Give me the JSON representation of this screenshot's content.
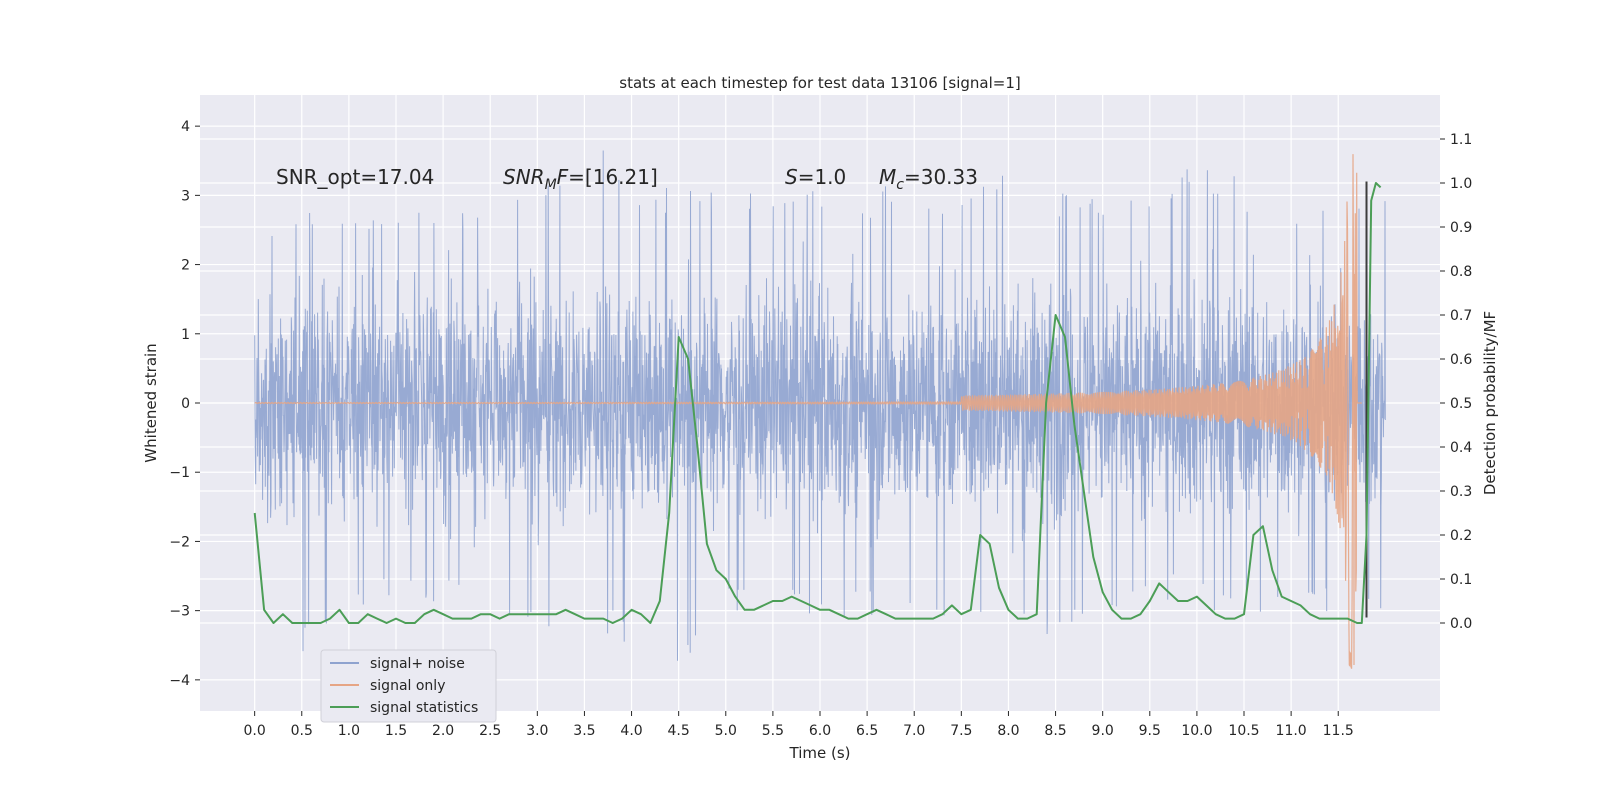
{
  "chart_data": {
    "type": "line",
    "title": "stats at each timestep for test data 13106 [signal=1]",
    "xlabel": "Time (s)",
    "ylabel": "Whitened strain",
    "ylabel_right": "Detection probability/MF",
    "xlim": [
      -0.58,
      12.58
    ],
    "ylim": [
      -4.45,
      4.45
    ],
    "ylim_right": [
      -0.2,
      1.2
    ],
    "x_ticks": [
      "0.0",
      "0.5",
      "1.0",
      "1.5",
      "2.0",
      "2.5",
      "3.0",
      "3.5",
      "4.0",
      "4.5",
      "5.0",
      "5.5",
      "6.0",
      "6.5",
      "7.0",
      "7.5",
      "8.0",
      "8.5",
      "9.0",
      "9.5",
      "10.0",
      "10.5",
      "11.0",
      "11.5"
    ],
    "y_ticks": [
      "4",
      "3",
      "2",
      "1",
      "0",
      "−1",
      "−2",
      "−3",
      "−4"
    ],
    "y_ticks_right": [
      "1.1",
      "1.0",
      "0.9",
      "0.8",
      "0.7",
      "0.6",
      "0.5",
      "0.4",
      "0.3",
      "0.2",
      "0.1",
      "0.0"
    ],
    "grid": true,
    "legend_position": "lower-left",
    "annotations": {
      "snr_opt": "SNR_opt=17.04",
      "snr_mf_name": "SNR",
      "snr_mf_sub": "M",
      "snr_mf_value": "F=[16.21]",
      "s_name": "S",
      "s_value": "=1.0",
      "mc_name": "M",
      "mc_sub": "c",
      "mc_value": "=30.33"
    },
    "series": [
      {
        "name": "signal+ noise",
        "color": "#8fa3cf",
        "axis": "left",
        "t_range": [
          0.0,
          12.0
        ],
        "envelope_x": [
          0.0,
          0.5,
          1.0,
          1.5,
          2.0,
          2.5,
          3.0,
          3.5,
          4.0,
          4.5,
          5.0,
          5.5,
          6.0,
          6.5,
          7.0,
          7.5,
          8.0,
          8.5,
          9.0,
          9.5,
          10.0,
          10.5,
          11.0,
          11.5,
          12.0
        ],
        "envelope_max": [
          2.2,
          2.9,
          3.0,
          2.9,
          3.0,
          2.9,
          3.3,
          4.1,
          3.2,
          3.1,
          3.1,
          3.0,
          3.3,
          3.1,
          3.2,
          3.2,
          3.4,
          3.0,
          3.2,
          3.0,
          3.6,
          3.2,
          3.0,
          3.2,
          3.1
        ],
        "envelope_min": [
          -3.0,
          -3.8,
          -3.1,
          -2.9,
          -3.0,
          -3.1,
          -3.3,
          -3.1,
          -3.6,
          -3.9,
          -3.1,
          -3.0,
          -3.4,
          -3.1,
          -3.0,
          -3.3,
          -3.1,
          -3.7,
          -3.1,
          -3.0,
          -3.0,
          -3.1,
          -3.2,
          -3.1,
          -3.2
        ]
      },
      {
        "name": "signal only",
        "color": "#e6a585",
        "axis": "left",
        "chirp_end_s": 11.7,
        "peak_amplitude": 3.9
      },
      {
        "name": "signal statistics",
        "color": "#4c9e57",
        "axis": "right",
        "x": [
          0.0,
          0.1,
          0.2,
          0.3,
          0.4,
          0.5,
          0.6,
          0.7,
          0.8,
          0.9,
          1.0,
          1.1,
          1.2,
          1.3,
          1.4,
          1.5,
          1.6,
          1.7,
          1.8,
          1.9,
          2.0,
          2.1,
          2.2,
          2.3,
          2.4,
          2.5,
          2.6,
          2.7,
          2.8,
          2.9,
          3.0,
          3.1,
          3.2,
          3.3,
          3.4,
          3.5,
          3.6,
          3.7,
          3.8,
          3.9,
          4.0,
          4.1,
          4.2,
          4.3,
          4.4,
          4.5,
          4.6,
          4.7,
          4.8,
          4.9,
          5.0,
          5.1,
          5.2,
          5.3,
          5.4,
          5.5,
          5.6,
          5.7,
          5.8,
          5.9,
          6.0,
          6.1,
          6.2,
          6.3,
          6.4,
          6.5,
          6.6,
          6.7,
          6.8,
          6.9,
          7.0,
          7.1,
          7.2,
          7.3,
          7.4,
          7.5,
          7.6,
          7.7,
          7.8,
          7.9,
          8.0,
          8.1,
          8.2,
          8.3,
          8.4,
          8.5,
          8.6,
          8.7,
          8.8,
          8.9,
          9.0,
          9.1,
          9.2,
          9.3,
          9.4,
          9.5,
          9.6,
          9.7,
          9.8,
          9.9,
          10.0,
          10.1,
          10.2,
          10.3,
          10.4,
          10.5,
          10.6,
          10.7,
          10.8,
          10.9,
          11.0,
          11.1,
          11.2,
          11.3,
          11.4,
          11.5,
          11.6,
          11.7,
          11.75,
          11.8,
          11.85,
          11.9,
          11.95
        ],
        "values": [
          0.25,
          0.03,
          0.0,
          0.02,
          0.0,
          0.0,
          0.0,
          0.0,
          0.01,
          0.03,
          0.0,
          0.0,
          0.02,
          0.01,
          0.0,
          0.01,
          0.0,
          0.0,
          0.02,
          0.03,
          0.02,
          0.01,
          0.01,
          0.01,
          0.02,
          0.02,
          0.01,
          0.02,
          0.02,
          0.02,
          0.02,
          0.02,
          0.02,
          0.03,
          0.02,
          0.01,
          0.01,
          0.01,
          0.0,
          0.01,
          0.03,
          0.02,
          0.0,
          0.05,
          0.25,
          0.65,
          0.6,
          0.4,
          0.18,
          0.12,
          0.1,
          0.06,
          0.03,
          0.03,
          0.04,
          0.05,
          0.05,
          0.06,
          0.05,
          0.04,
          0.03,
          0.03,
          0.02,
          0.01,
          0.01,
          0.02,
          0.03,
          0.02,
          0.01,
          0.01,
          0.01,
          0.01,
          0.01,
          0.02,
          0.04,
          0.02,
          0.03,
          0.2,
          0.18,
          0.08,
          0.03,
          0.01,
          0.01,
          0.02,
          0.5,
          0.7,
          0.65,
          0.45,
          0.3,
          0.15,
          0.07,
          0.03,
          0.01,
          0.01,
          0.02,
          0.05,
          0.09,
          0.07,
          0.05,
          0.05,
          0.06,
          0.04,
          0.02,
          0.01,
          0.01,
          0.02,
          0.2,
          0.22,
          0.12,
          0.06,
          0.05,
          0.04,
          0.02,
          0.01,
          0.01,
          0.01,
          0.01,
          0.0,
          0.0,
          0.2,
          0.96,
          1.0,
          0.99
        ]
      }
    ],
    "vertical_marker": {
      "color": "#3d3d3d",
      "x": 11.8,
      "y_from": -3.1,
      "y_to": 3.2
    }
  }
}
